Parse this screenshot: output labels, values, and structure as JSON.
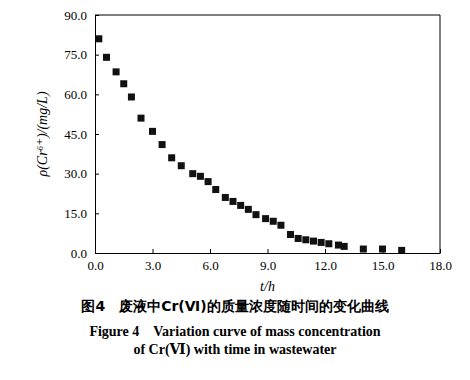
{
  "chart_data": {
    "type": "scatter",
    "title": "图4　废液中Cr(Ⅵ)的质量浓度随时间的变化曲线",
    "subtitle": [
      "Figure 4　Variation curve of mass concentration",
      "of Cr(Ⅵ) with time in wastewater"
    ],
    "x_label": "t/h",
    "y_label": "ρ(Cr⁶⁺)/(mg/L)",
    "x": [
      0.2,
      0.6,
      1.1,
      1.5,
      1.9,
      2.4,
      3.0,
      3.5,
      4.0,
      4.5,
      5.1,
      5.5,
      5.9,
      6.3,
      6.8,
      7.2,
      7.6,
      8.0,
      8.4,
      8.9,
      9.3,
      9.7,
      10.2,
      10.6,
      11.0,
      11.4,
      11.8,
      12.2,
      12.7,
      13.0,
      14.0,
      15.0,
      16.0
    ],
    "values": [
      81,
      74,
      68.5,
      64,
      59,
      51,
      46,
      41,
      36,
      33,
      30,
      29,
      27,
      24,
      21,
      19.5,
      18,
      16.5,
      14.5,
      13,
      12,
      10.5,
      7,
      5.5,
      5,
      4.5,
      4,
      3.5,
      3,
      2.5,
      1.5,
      1.5,
      1
    ],
    "color": "#111111",
    "marker": "square",
    "xlim": [
      0,
      18
    ],
    "xticks": [
      {
        "value": 0,
        "label": "0.0"
      },
      {
        "value": 3,
        "label": "3.0"
      },
      {
        "value": 6,
        "label": "6.0"
      },
      {
        "value": 9,
        "label": "9.0"
      },
      {
        "value": 12,
        "label": "12.0"
      },
      {
        "value": 15,
        "label": "15.0"
      },
      {
        "value": 18,
        "label": "18.0"
      }
    ],
    "ylim": [
      0,
      90
    ],
    "yticks": [
      {
        "value": 0,
        "label": "0.0"
      },
      {
        "value": 15,
        "label": "15.0"
      },
      {
        "value": 30,
        "label": "30.0"
      },
      {
        "value": 45,
        "label": "45.0"
      },
      {
        "value": 60,
        "label": "60.0"
      },
      {
        "value": 75,
        "label": "75.0"
      },
      {
        "value": 90,
        "label": "90.0"
      }
    ],
    "grid": false
  }
}
